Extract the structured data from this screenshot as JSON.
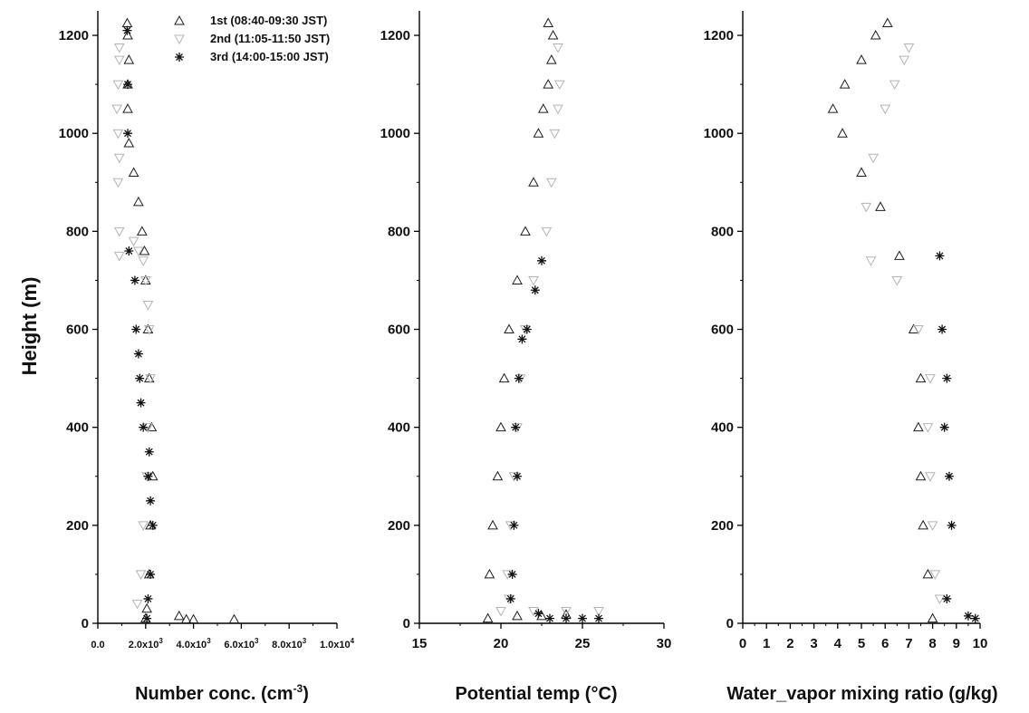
{
  "figure": {
    "ylabel": "Height (m)"
  },
  "legend": [
    {
      "label": "1st (08:40-09:30 JST)",
      "marker": "triangle-up",
      "color": "#222222"
    },
    {
      "label": "2nd (11:05-11:50 JST)",
      "marker": "triangle-down",
      "color": "#b8b8b8"
    },
    {
      "label": "3rd (14:00-15:00 JST)",
      "marker": "asterisk",
      "color": "#1a1a1a"
    }
  ],
  "chart_data": [
    {
      "type": "scatter",
      "xlabel": "Number conc. (cm⁻³)",
      "xlabel_main": "Number conc. (cm",
      "xlabel_sup": "-3",
      "xlabel_end": ")",
      "ylabel": "Height (m)",
      "xlim": [
        0,
        10000
      ],
      "ylim": [
        0,
        1250
      ],
      "xticks": [
        {
          "v": 0,
          "base": "0.0",
          "exp": ""
        },
        {
          "v": 2000,
          "base": "2.0x10",
          "exp": "3"
        },
        {
          "v": 4000,
          "base": "4.0x10",
          "exp": "3"
        },
        {
          "v": 6000,
          "base": "6.0x10",
          "exp": "3"
        },
        {
          "v": 8000,
          "base": "8.0x10",
          "exp": "3"
        },
        {
          "v": 10000,
          "base": "1.0x10",
          "exp": "4"
        }
      ],
      "yticks": [
        0,
        200,
        400,
        600,
        800,
        1000,
        1200
      ],
      "series": [
        {
          "marker": "triangle-up",
          "x": [
            2000,
            2050,
            3400,
            3700,
            4000,
            5700,
            2150,
            2200,
            2300,
            2250,
            2150,
            2100,
            2000,
            1950,
            1850,
            1700,
            1500,
            1300,
            1250,
            1250,
            1300,
            1250,
            1230
          ],
          "y": [
            10,
            30,
            15,
            8,
            8,
            8,
            100,
            200,
            300,
            400,
            500,
            600,
            700,
            760,
            800,
            860,
            920,
            980,
            1050,
            1100,
            1150,
            1200,
            1225
          ]
        },
        {
          "marker": "triangle-down",
          "x": [
            1650,
            1800,
            1900,
            2050,
            2100,
            2200,
            2150,
            2100,
            2000,
            1900,
            1700,
            1500,
            900,
            900,
            850,
            900,
            850,
            800,
            850,
            900,
            900
          ],
          "y": [
            40,
            100,
            200,
            300,
            400,
            500,
            600,
            650,
            700,
            740,
            760,
            780,
            750,
            800,
            900,
            950,
            1000,
            1050,
            1100,
            1150,
            1175
          ]
        },
        {
          "marker": "asterisk",
          "x": [
            2050,
            2100,
            2200,
            2300,
            2200,
            2100,
            2150,
            1900,
            1800,
            1750,
            1700,
            1600,
            1550,
            1300,
            1250,
            1250,
            1230
          ],
          "y": [
            10,
            50,
            100,
            200,
            250,
            300,
            350,
            400,
            450,
            500,
            550,
            600,
            700,
            760,
            1000,
            1100,
            1210
          ]
        }
      ]
    },
    {
      "type": "scatter",
      "xlabel": "Potential temp (°C)",
      "xlabel_main": "Potential temp ",
      "xlabel_sup": "",
      "xlabel_end": "(°C)",
      "xlim": [
        15,
        30
      ],
      "ylim": [
        0,
        1250
      ],
      "xticks": [
        {
          "v": 15,
          "base": "15",
          "exp": ""
        },
        {
          "v": 20,
          "base": "20",
          "exp": ""
        },
        {
          "v": 25,
          "base": "25",
          "exp": ""
        },
        {
          "v": 30,
          "base": "30",
          "exp": ""
        }
      ],
      "yticks": [
        0,
        200,
        400,
        600,
        800,
        1000,
        1200
      ],
      "series": [
        {
          "marker": "triangle-up",
          "x": [
            19.2,
            19.3,
            19.5,
            19.8,
            20.0,
            20.2,
            20.5,
            21.0,
            21.5,
            22.0,
            22.3,
            22.6,
            22.9,
            23.1,
            23.2,
            22.9,
            21.0,
            22.5,
            24.0
          ],
          "y": [
            10,
            100,
            200,
            300,
            400,
            500,
            600,
            700,
            800,
            900,
            1000,
            1050,
            1100,
            1150,
            1200,
            1225,
            15,
            15,
            18
          ]
        },
        {
          "marker": "triangle-down",
          "x": [
            20.5,
            20.4,
            20.6,
            20.8,
            21.0,
            21.2,
            21.5,
            22.0,
            22.8,
            23.1,
            23.3,
            23.5,
            23.6,
            23.5,
            20.0,
            22.0,
            24.0,
            26.0
          ],
          "y": [
            50,
            100,
            200,
            300,
            400,
            500,
            600,
            700,
            800,
            900,
            1000,
            1050,
            1100,
            1175,
            25,
            25,
            25,
            25
          ]
        },
        {
          "marker": "asterisk",
          "x": [
            20.6,
            20.7,
            20.8,
            21.0,
            20.9,
            21.1,
            21.3,
            21.6,
            22.1,
            22.5,
            22.3,
            23.0,
            24.0,
            25.0,
            26.0
          ],
          "y": [
            50,
            100,
            200,
            300,
            400,
            500,
            580,
            600,
            680,
            740,
            20,
            10,
            10,
            10,
            10
          ]
        }
      ]
    },
    {
      "type": "scatter",
      "xlabel": "Water_vapor mixing ratio (g/kg)",
      "xlabel_main": "Water_vapor mixing ratio (g/kg)",
      "xlabel_sup": "",
      "xlabel_end": "",
      "xlim": [
        0,
        10
      ],
      "ylim": [
        0,
        1250
      ],
      "xticks": [
        {
          "v": 0,
          "base": "0",
          "exp": ""
        },
        {
          "v": 1,
          "base": "1",
          "exp": ""
        },
        {
          "v": 2,
          "base": "2",
          "exp": ""
        },
        {
          "v": 3,
          "base": "3",
          "exp": ""
        },
        {
          "v": 4,
          "base": "4",
          "exp": ""
        },
        {
          "v": 5,
          "base": "5",
          "exp": ""
        },
        {
          "v": 6,
          "base": "6",
          "exp": ""
        },
        {
          "v": 7,
          "base": "7",
          "exp": ""
        },
        {
          "v": 8,
          "base": "8",
          "exp": ""
        },
        {
          "v": 9,
          "base": "9",
          "exp": ""
        },
        {
          "v": 10,
          "base": "10",
          "exp": ""
        }
      ],
      "yticks": [
        0,
        200,
        400,
        600,
        800,
        1000,
        1200
      ],
      "series": [
        {
          "marker": "triangle-up",
          "x": [
            8.0,
            7.8,
            7.6,
            7.5,
            7.4,
            7.5,
            7.2,
            6.6,
            5.8,
            5.0,
            4.2,
            3.8,
            4.3,
            5.0,
            5.6,
            6.1
          ],
          "y": [
            10,
            100,
            200,
            300,
            400,
            500,
            600,
            750,
            850,
            920,
            1000,
            1050,
            1100,
            1150,
            1200,
            1225
          ]
        },
        {
          "marker": "triangle-down",
          "x": [
            8.3,
            8.1,
            8.0,
            7.9,
            7.8,
            7.9,
            7.4,
            6.5,
            5.4,
            5.2,
            5.5,
            6.0,
            6.4,
            6.8,
            7.0
          ],
          "y": [
            50,
            100,
            200,
            300,
            400,
            500,
            600,
            700,
            740,
            850,
            950,
            1050,
            1100,
            1150,
            1175
          ]
        },
        {
          "marker": "asterisk",
          "x": [
            8.6,
            8.8,
            8.7,
            8.5,
            8.6,
            8.4,
            8.3,
            9.5,
            9.8
          ],
          "y": [
            50,
            200,
            300,
            400,
            500,
            600,
            750,
            15,
            10
          ]
        }
      ]
    }
  ]
}
